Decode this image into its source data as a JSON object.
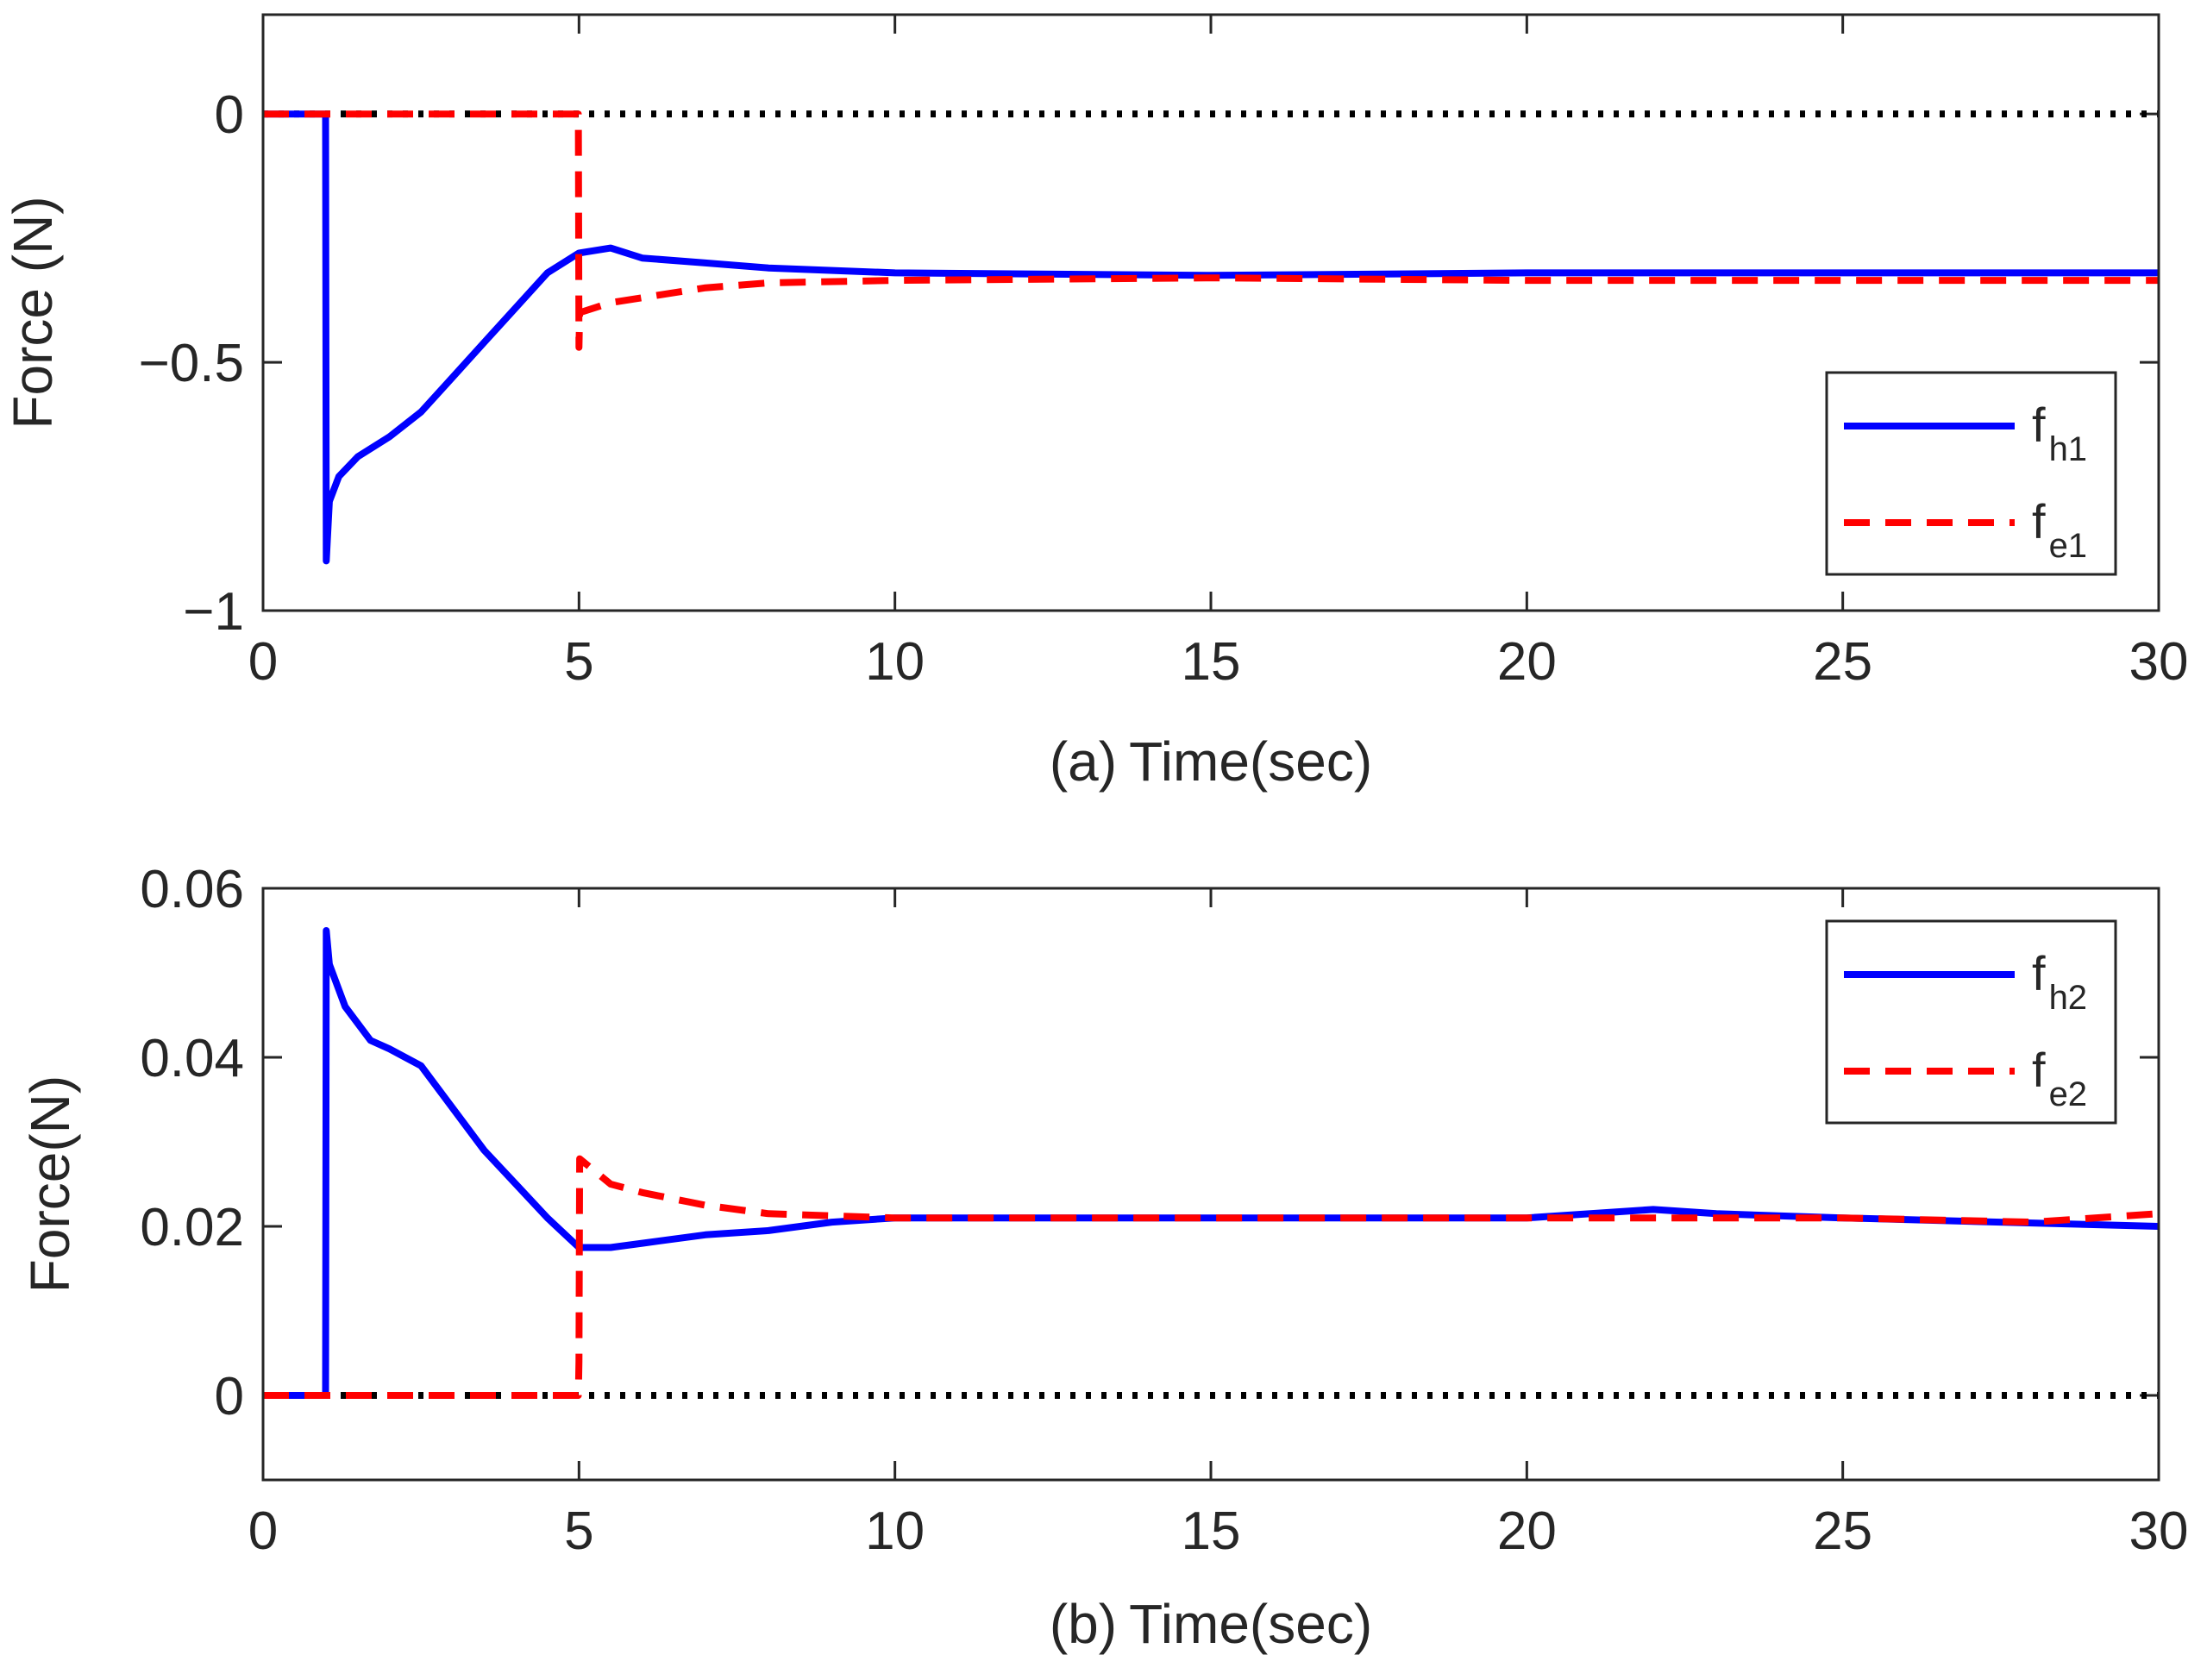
{
  "chart_data": [
    {
      "type": "line",
      "panel": "a",
      "ylabel": "Force (N)",
      "xlabel_prefix": "(a)",
      "xlabel": "Time(sec)",
      "xlim": [
        0,
        30
      ],
      "ylim": [
        -1,
        0.2
      ],
      "xticks": [
        0,
        5,
        10,
        15,
        20,
        25,
        30
      ],
      "yticks": [
        -1,
        -0.5,
        0
      ],
      "ytick_labels": [
        "−1",
        "−0.5",
        "0"
      ],
      "reference": {
        "name": "reference",
        "y": 0,
        "color": "#000000",
        "style": "dotted"
      },
      "series": [
        {
          "name": "f_h1",
          "label_main": "f",
          "label_sub": "h1",
          "color": "#0000ff",
          "style": "solid",
          "x": [
            0,
            0.99,
            1.0,
            1.05,
            1.2,
            1.5,
            2.0,
            2.5,
            3.0,
            3.5,
            4.0,
            4.5,
            5.0,
            5.5,
            6.0,
            7.0,
            8.0,
            10.0,
            15.0,
            20.0,
            25.0,
            30.0
          ],
          "y": [
            0,
            0,
            -0.9,
            -0.78,
            -0.73,
            -0.69,
            -0.65,
            -0.6,
            -0.53,
            -0.46,
            -0.39,
            -0.32,
            -0.28,
            -0.27,
            -0.29,
            -0.3,
            -0.31,
            -0.32,
            -0.325,
            -0.32,
            -0.32,
            -0.32
          ]
        },
        {
          "name": "f_e1",
          "label_main": "f",
          "label_sub": "e1",
          "color": "#ff0000",
          "style": "dashed",
          "x": [
            0,
            4.99,
            5.0,
            5.01,
            5.5,
            6.0,
            7.0,
            8.0,
            10.0,
            15.0,
            20.0,
            25.0,
            30.0
          ],
          "y": [
            0,
            0,
            -0.47,
            -0.4,
            -0.38,
            -0.37,
            -0.35,
            -0.34,
            -0.335,
            -0.33,
            -0.335,
            -0.335,
            -0.335
          ]
        }
      ]
    },
    {
      "type": "line",
      "panel": "b",
      "ylabel": "Force(N)",
      "xlabel_prefix": "(b)",
      "xlabel": "Time(sec)",
      "xlim": [
        0,
        30
      ],
      "ylim": [
        -0.01,
        0.06
      ],
      "xticks": [
        0,
        5,
        10,
        15,
        20,
        25,
        30
      ],
      "yticks": [
        0,
        0.02,
        0.04,
        0.06
      ],
      "ytick_labels": [
        "0",
        "0.02",
        "0.04",
        "0.06"
      ],
      "reference": {
        "name": "reference",
        "y": 0,
        "color": "#000000",
        "style": "dotted"
      },
      "series": [
        {
          "name": "f_h2",
          "label_main": "f",
          "label_sub": "h2",
          "color": "#0000ff",
          "style": "solid",
          "x": [
            0,
            0.99,
            1.0,
            1.05,
            1.3,
            1.7,
            2.0,
            2.5,
            3.0,
            3.5,
            4.0,
            4.5,
            5.0,
            5.5,
            6.0,
            7.0,
            8.0,
            9.0,
            10.0,
            15.0,
            20.0,
            22.0,
            23.0,
            25.0,
            30.0
          ],
          "y": [
            0,
            0,
            0.055,
            0.051,
            0.046,
            0.042,
            0.041,
            0.039,
            0.034,
            0.029,
            0.025,
            0.021,
            0.0175,
            0.0175,
            0.018,
            0.019,
            0.0195,
            0.0205,
            0.021,
            0.021,
            0.021,
            0.022,
            0.0215,
            0.021,
            0.02
          ]
        },
        {
          "name": "f_e2",
          "label_main": "f",
          "label_sub": "e2",
          "color": "#ff0000",
          "style": "dashed",
          "x": [
            0,
            4.99,
            5.0,
            5.01,
            5.5,
            6.0,
            7.0,
            8.0,
            10.0,
            15.0,
            20.0,
            25.0,
            28.0,
            30.0
          ],
          "y": [
            0,
            0,
            0.004,
            0.028,
            0.025,
            0.024,
            0.0225,
            0.0215,
            0.021,
            0.021,
            0.021,
            0.021,
            0.0205,
            0.0215
          ]
        }
      ]
    }
  ]
}
